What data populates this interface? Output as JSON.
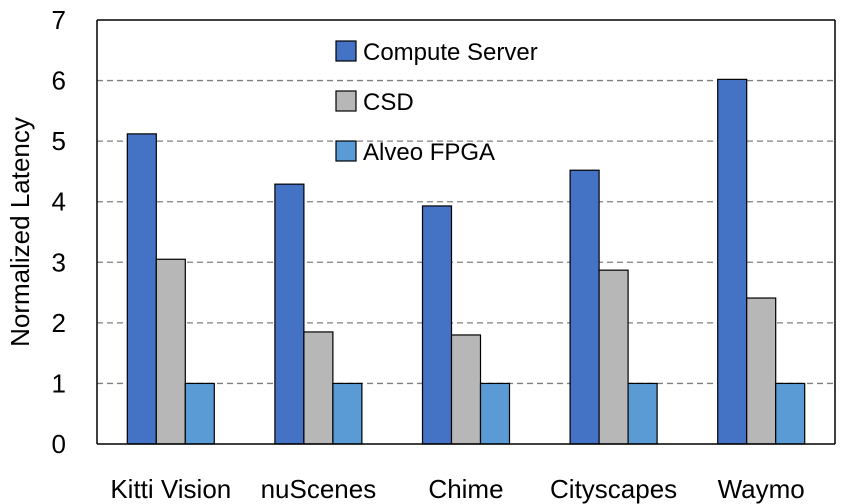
{
  "chart_data": {
    "type": "bar",
    "title": "",
    "xlabel": "",
    "ylabel": "Normalized Latency",
    "ylim": [
      0,
      7
    ],
    "yticks": [
      0,
      1,
      2,
      3,
      4,
      5,
      6,
      7
    ],
    "grid": "horizontal dashed",
    "legend_position": "top-center",
    "categories": [
      "Kitti Vision",
      "nuScenes",
      "Chime",
      "Cityscapes",
      "Waymo"
    ],
    "series": [
      {
        "name": "Compute Server",
        "color": "#4472C4",
        "values": [
          5.12,
          4.29,
          3.93,
          4.52,
          6.02
        ]
      },
      {
        "name": "CSD",
        "color": "#B7B7B7",
        "values": [
          3.05,
          1.85,
          1.8,
          2.87,
          2.41
        ]
      },
      {
        "name": "Alveo FPGA",
        "color": "#5B9BD5",
        "values": [
          1.0,
          1.0,
          1.0,
          1.0,
          1.0
        ]
      }
    ]
  }
}
